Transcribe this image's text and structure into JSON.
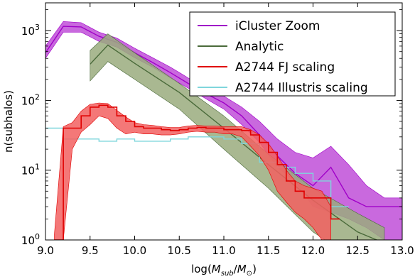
{
  "chart_data": {
    "type": "line",
    "title": "",
    "xlabel": "log(M_sub/M_⊙)",
    "ylabel": "n(subhalos)",
    "xlim": [
      9.0,
      13.0
    ],
    "ylim": [
      1,
      2500
    ],
    "yscale": "log",
    "x_ticks": [
      "9.0",
      "9.5",
      "10.0",
      "10.5",
      "11.0",
      "11.5",
      "12.0",
      "12.5",
      "13.0"
    ],
    "y_ticks": [
      {
        "value": 1,
        "base": "10",
        "exp": "0"
      },
      {
        "value": 10,
        "base": "10",
        "exp": "1"
      },
      {
        "value": 100,
        "base": "10",
        "exp": "2"
      },
      {
        "value": 1000,
        "base": "10",
        "exp": "3"
      }
    ],
    "legend_position": "top-right",
    "grid": false,
    "series": [
      {
        "name": "iCluster Zoom",
        "color": "#a000c8",
        "fill": "#c04fd8",
        "x": [
          9.0,
          9.2,
          9.4,
          9.6,
          9.8,
          10.0,
          10.2,
          10.4,
          10.6,
          10.8,
          11.0,
          11.2,
          11.4,
          11.6,
          11.8,
          12.0,
          12.2,
          12.4,
          12.6,
          12.8,
          13.0
        ],
        "values": [
          480,
          1150,
          1130,
          830,
          680,
          480,
          350,
          250,
          175,
          125,
          92,
          60,
          32,
          16,
          9,
          6,
          11,
          4,
          3,
          3,
          3
        ],
        "band_lower": [
          400,
          950,
          950,
          700,
          580,
          410,
          300,
          210,
          150,
          105,
          75,
          45,
          25,
          11,
          7,
          3,
          2.5,
          2,
          1.5,
          1,
          1
        ],
        "band_upper": [
          600,
          1350,
          1300,
          950,
          780,
          560,
          410,
          300,
          210,
          150,
          115,
          80,
          50,
          28,
          18,
          15,
          22,
          12,
          6,
          4,
          4
        ]
      },
      {
        "name": "Analytic",
        "color": "#4a6a3a",
        "fill": "#9aab7e",
        "x": [
          9.5,
          9.7,
          10.0,
          10.5,
          11.0,
          11.5,
          12.0,
          12.5,
          12.8
        ],
        "values": [
          330,
          620,
          340,
          130,
          40,
          12,
          3.7,
          1.3,
          0.9
        ],
        "band_lower": [
          190,
          360,
          200,
          75,
          20,
          5.5,
          1.3,
          0.5,
          0.3
        ],
        "band_upper": [
          520,
          900,
          480,
          175,
          60,
          17,
          5.5,
          2.4,
          1.5
        ]
      },
      {
        "name": "A2744 FJ scaling",
        "color": "#e00000",
        "fill": "#f26060",
        "x": [
          9.1,
          9.2,
          9.3,
          9.4,
          9.5,
          9.6,
          9.7,
          9.8,
          9.9,
          10.0,
          10.1,
          10.2,
          10.3,
          10.4,
          10.5,
          10.6,
          10.7,
          10.8,
          10.9,
          11.0,
          11.1,
          11.2,
          11.3,
          11.4,
          11.5,
          11.6,
          11.7,
          11.8,
          11.9,
          12.0,
          12.1,
          12.2
        ],
        "values": [
          1,
          40,
          40,
          60,
          80,
          85,
          80,
          60,
          50,
          42,
          40,
          40,
          38,
          37,
          38,
          40,
          41,
          40,
          40,
          38,
          38,
          37,
          32,
          25,
          18,
          12,
          7,
          5,
          4,
          4,
          4,
          2
        ],
        "band_lower": [
          0.8,
          1,
          20,
          35,
          45,
          60,
          55,
          40,
          33,
          35,
          33,
          33,
          32,
          32,
          33,
          35,
          36,
          35,
          35,
          33,
          33,
          30,
          22,
          16,
          10,
          5,
          3.5,
          2.5,
          2,
          1.5,
          1,
          0.8
        ],
        "band_upper": [
          1.2,
          42,
          48,
          70,
          88,
          92,
          90,
          72,
          58,
          48,
          45,
          44,
          42,
          41,
          41,
          43,
          44,
          43,
          43,
          42,
          42,
          42,
          38,
          32,
          24,
          16,
          10,
          7,
          6,
          5.5,
          5,
          3
        ]
      },
      {
        "name": "A2744 Illustris scaling",
        "color": "#7fd6dc",
        "x": [
          9.0,
          9.2,
          9.4,
          9.6,
          9.8,
          10.0,
          10.2,
          10.4,
          10.6,
          10.8,
          11.0,
          11.2,
          11.4,
          11.6,
          11.8,
          12.0,
          12.2
        ],
        "values": [
          40,
          28,
          28,
          26,
          28,
          26,
          26,
          28,
          30,
          30,
          28,
          24,
          13,
          11,
          9,
          7,
          3
        ],
        "step": true
      }
    ]
  }
}
